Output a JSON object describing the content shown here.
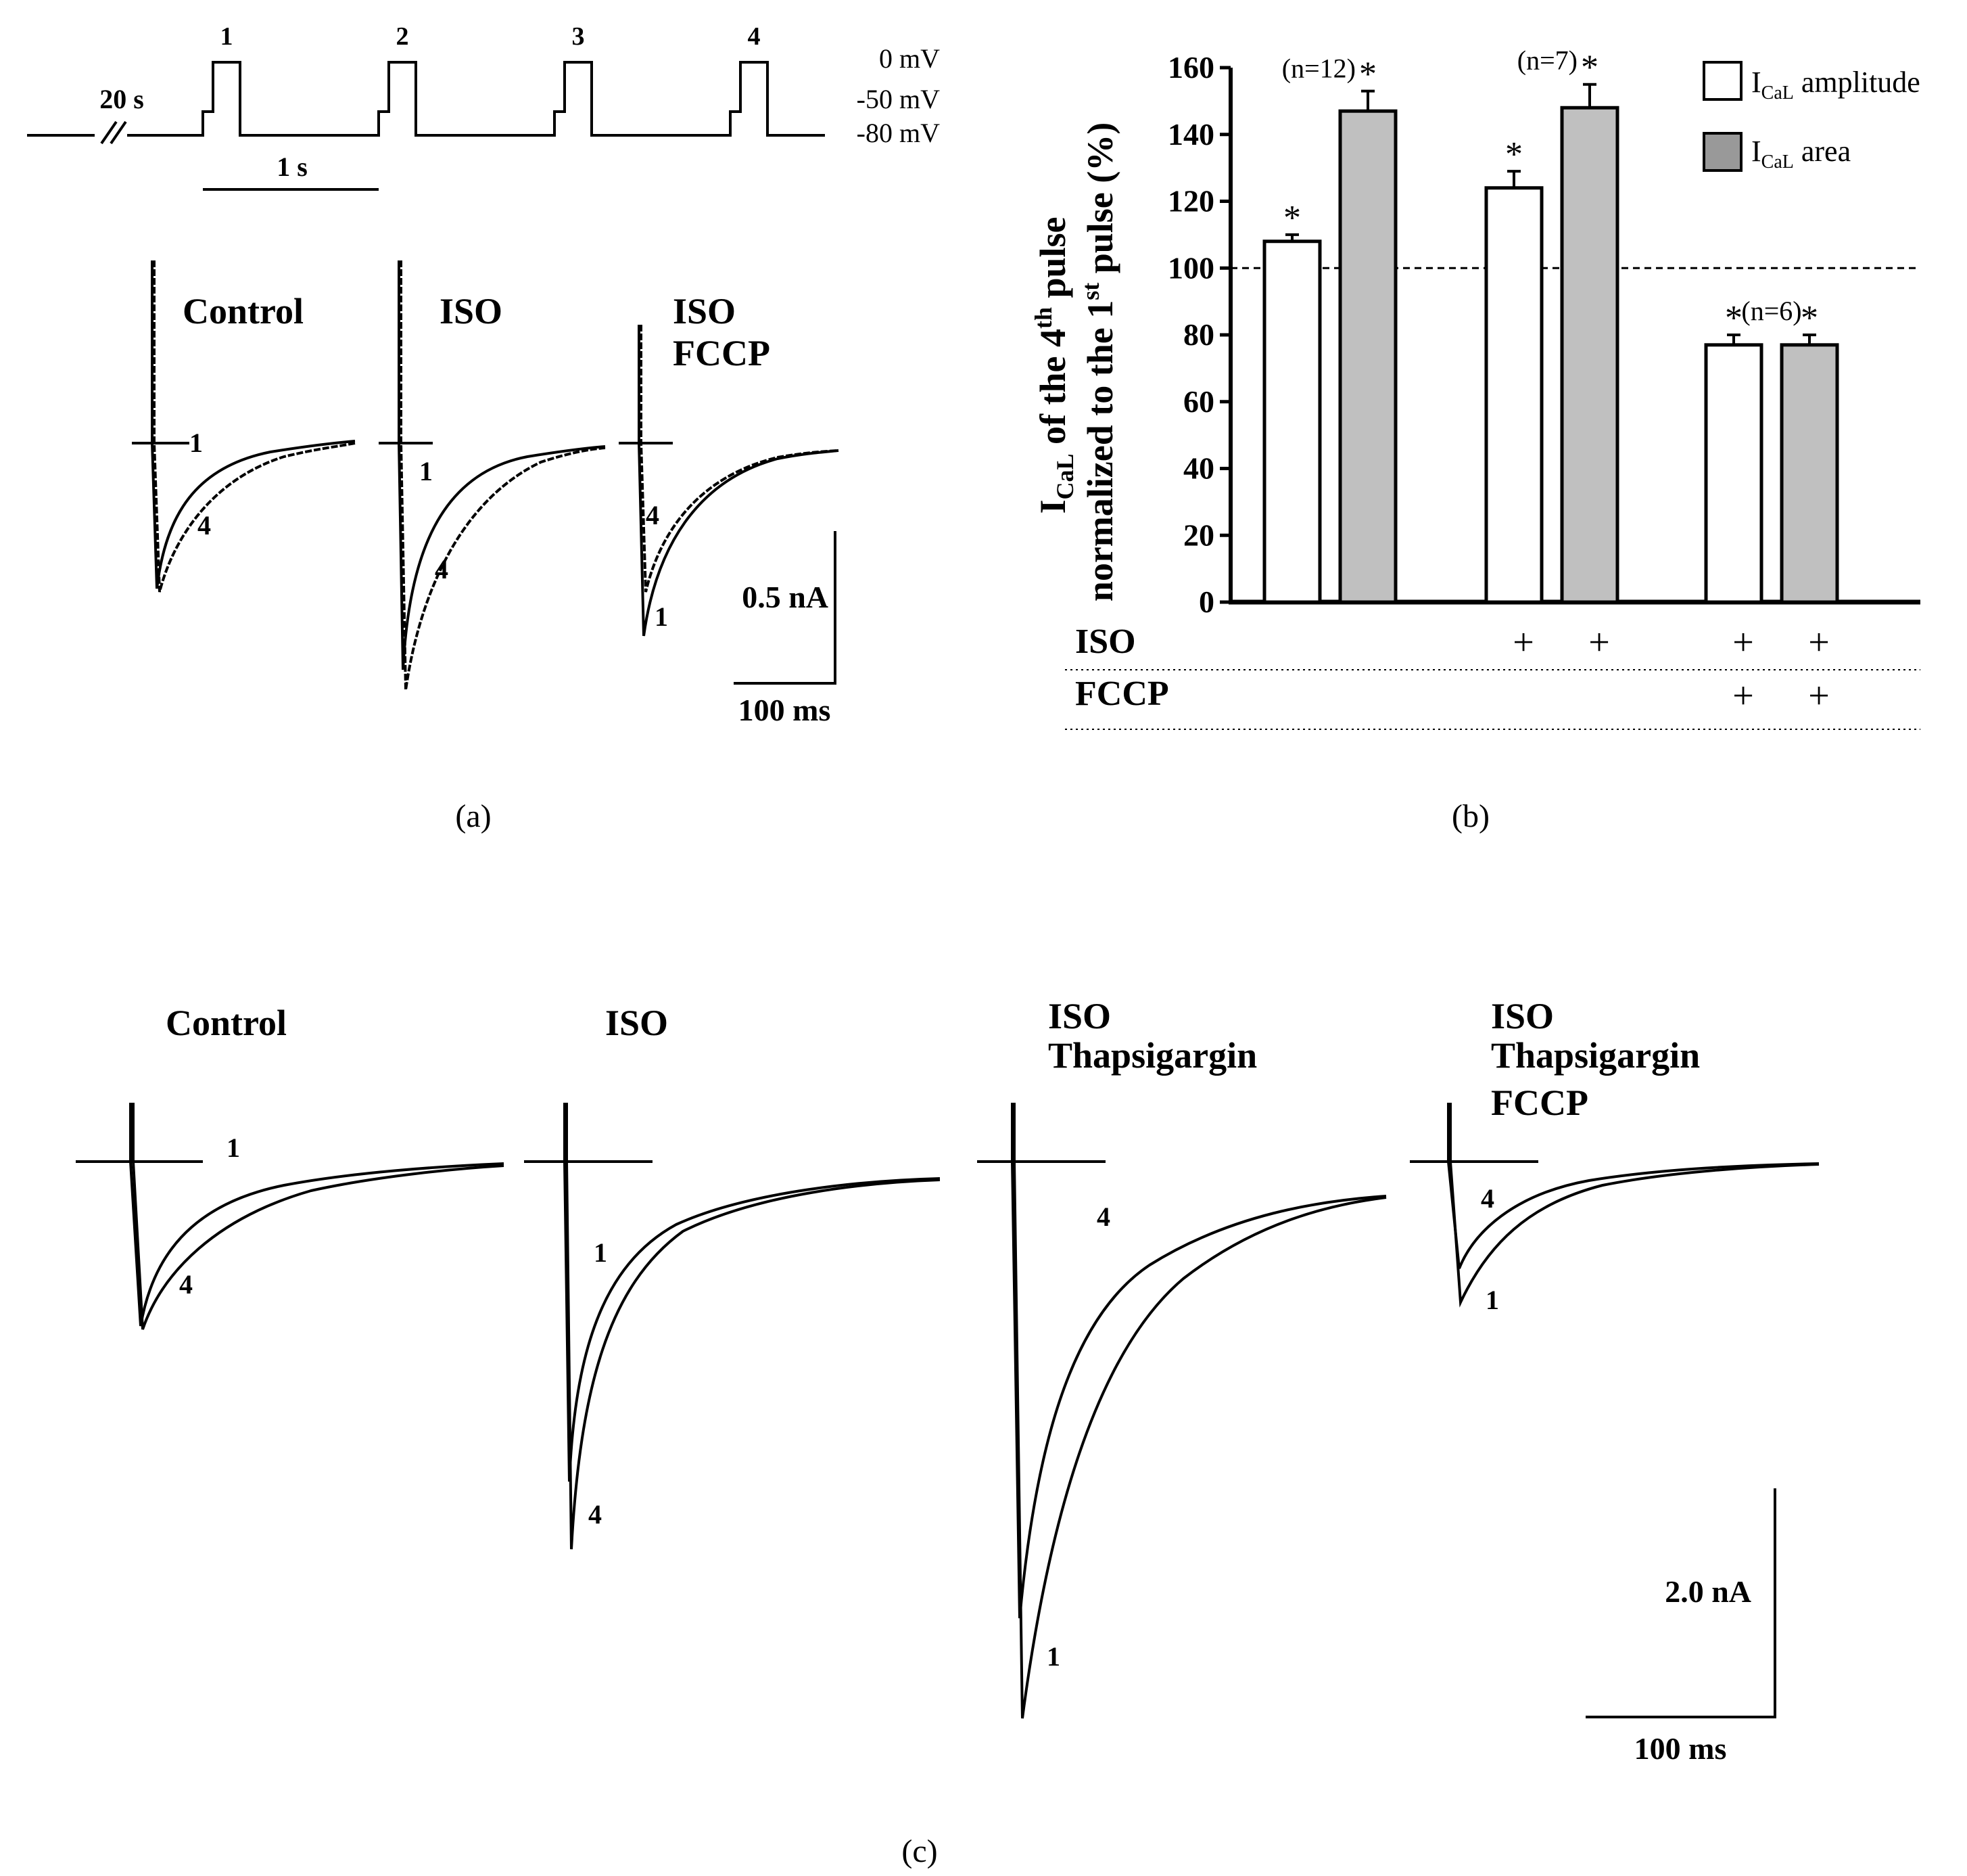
{
  "protocol": {
    "pulse_labels": [
      "1",
      "2",
      "3",
      "4"
    ],
    "gap_label": "20 s",
    "time_scale_label": "1 s",
    "voltage_labels": [
      "0 mV",
      "-50 mV",
      "-80 mV"
    ]
  },
  "panel_a": {
    "caption": "(a)",
    "groups": [
      {
        "title_lines": [
          "Control"
        ],
        "trace_labels": [
          "1",
          "4"
        ]
      },
      {
        "title_lines": [
          "ISO"
        ],
        "trace_labels": [
          "1",
          "4"
        ]
      },
      {
        "title_lines": [
          "ISO",
          "FCCP"
        ],
        "trace_labels": [
          "4",
          "1"
        ]
      }
    ],
    "scale_current": "0.5 nA",
    "scale_time": "100 ms"
  },
  "panel_b": {
    "caption": "(b)",
    "row_labels": [
      "ISO",
      "FCCP"
    ],
    "plus": "+",
    "n_labels": [
      "(n=12)",
      "(n=7)",
      "(n=6)"
    ],
    "star": "*"
  },
  "chart_data": {
    "type": "bar",
    "ylabel_line1": "I",
    "ylabel_sub": "CaL",
    "ylabel_mid": " of the 4",
    "ylabel_sup": "th",
    "ylabel_end": " pulse",
    "ylabel_line2_start": "normalized to the 1",
    "ylabel_line2_sup": "st",
    "ylabel_line2_end": " pulse (%)",
    "ylim": [
      0,
      160
    ],
    "yticks": [
      0,
      20,
      40,
      60,
      80,
      100,
      120,
      140,
      160
    ],
    "reference_line": 100,
    "groups": [
      "Control",
      "ISO",
      "ISO + FCCP"
    ],
    "series": [
      {
        "name": "I_CaL amplitude",
        "legend_main": "I",
        "legend_sub": "CaL",
        "legend_end": " amplitude",
        "color": "#ffffff",
        "values": [
          108,
          124,
          77
        ],
        "errors": [
          2,
          5,
          3
        ]
      },
      {
        "name": "I_CaL area",
        "legend_main": "I",
        "legend_sub": "CaL",
        "legend_end": " area",
        "color": "#c0c0c0",
        "values": [
          147,
          148,
          77
        ],
        "errors": [
          6,
          7,
          3
        ]
      }
    ]
  },
  "panel_c": {
    "caption": "(c)",
    "groups": [
      {
        "title_lines": [
          "Control"
        ],
        "trace_labels": [
          "1",
          "4"
        ]
      },
      {
        "title_lines": [
          "ISO"
        ],
        "trace_labels": [
          "1",
          "4"
        ]
      },
      {
        "title_lines": [
          "ISO",
          "Thapsigargin"
        ],
        "trace_labels": [
          "4",
          "1"
        ]
      },
      {
        "title_lines": [
          "ISO",
          "Thapsigargin",
          "FCCP"
        ],
        "trace_labels": [
          "4",
          "1"
        ]
      }
    ],
    "scale_current": "2.0 nA",
    "scale_time": "100 ms"
  }
}
